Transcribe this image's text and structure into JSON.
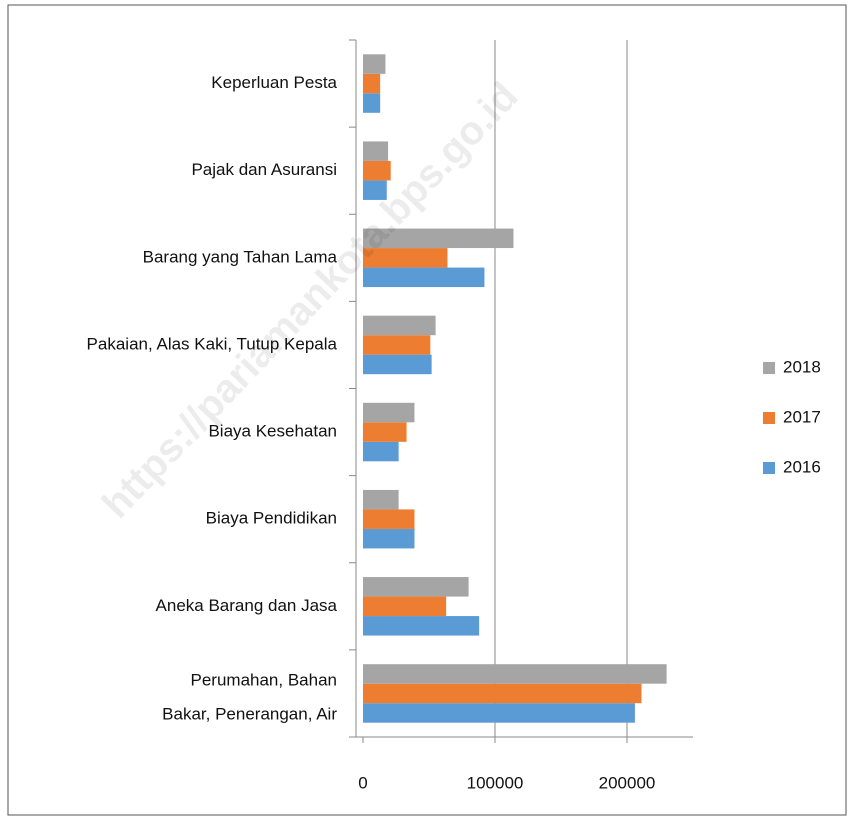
{
  "chart_data": {
    "type": "barh",
    "categories": [
      "Perumahan, Bahan Bakar, Penerangan, Air",
      "Aneka Barang dan Jasa",
      "Biaya Pendidikan",
      "Biaya Kesehatan",
      "Pakaian, Alas Kaki, Tutup Kepala",
      "Barang yang Tahan Lama",
      "Pajak dan Asuransi",
      "Keperluan Pesta"
    ],
    "series": [
      {
        "name": "2016",
        "color": "#5b9bd5",
        "values": [
          206000,
          88000,
          39000,
          27000,
          52000,
          92000,
          18000,
          13000
        ]
      },
      {
        "name": "2017",
        "color": "#ed7d31",
        "values": [
          211000,
          63000,
          39000,
          33000,
          51000,
          64000,
          21000,
          13000
        ]
      },
      {
        "name": "2018",
        "color": "#a5a5a5",
        "values": [
          230000,
          80000,
          27000,
          39000,
          55000,
          114000,
          19000,
          17000
        ]
      }
    ],
    "xlim": [
      0,
      250000
    ],
    "xticks": [
      0,
      100000,
      200000
    ],
    "grid": true,
    "legend": "right",
    "watermark": "https://pariamankota.bps.go.id"
  }
}
